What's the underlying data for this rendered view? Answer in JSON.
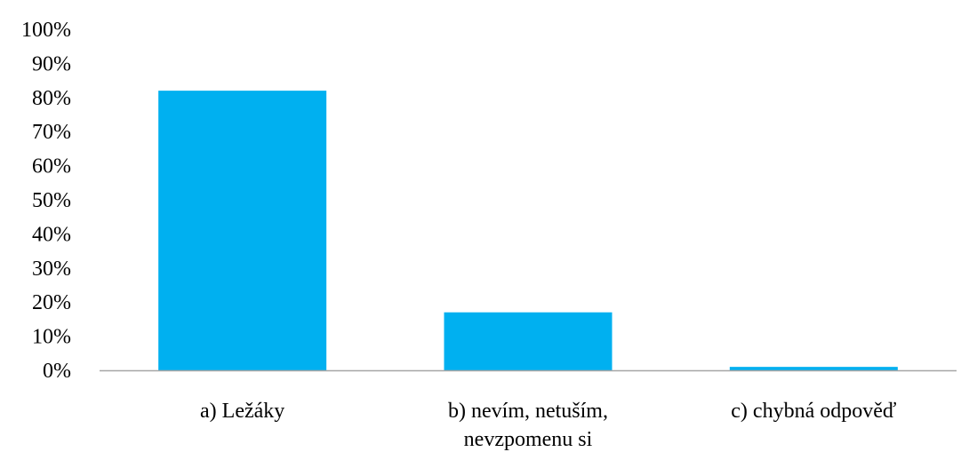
{
  "chart_data": {
    "type": "bar",
    "categories": [
      [
        "a) Ležáky"
      ],
      [
        "b) nevím, netuším,",
        "nevzpomenu si"
      ],
      [
        "c) chybná odpověď"
      ]
    ],
    "values": [
      82,
      17,
      1
    ],
    "value_unit": "%",
    "ylim": [
      0,
      100
    ],
    "y_ticks": [
      "0%",
      "10%",
      "20%",
      "30%",
      "40%",
      "50%",
      "60%",
      "70%",
      "80%",
      "90%",
      "100%"
    ],
    "y_tick_values": [
      0,
      10,
      20,
      30,
      40,
      50,
      60,
      70,
      80,
      90,
      100
    ],
    "title": "",
    "xlabel": "",
    "ylabel": "",
    "grid": false,
    "legend": "none",
    "bar_color": "#00B0F0",
    "axis_color": "#A6A6A6"
  }
}
